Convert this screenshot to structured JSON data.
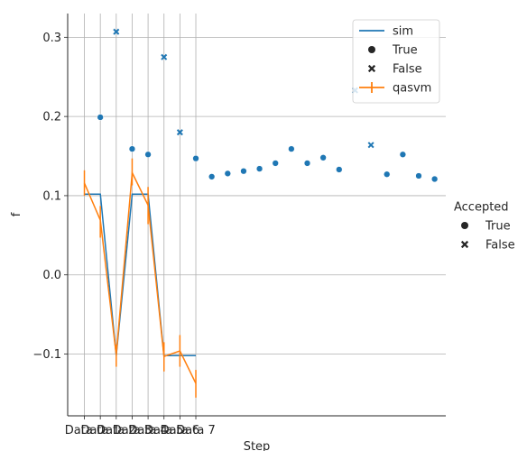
{
  "chart_data": {
    "type": "scatter",
    "title": "",
    "xlabel": "Step",
    "ylabel": "f",
    "ylim": [
      -0.178,
      0.33
    ],
    "xlim": [
      -1.05,
      22.7
    ],
    "grid": true,
    "y_ticks": [
      -0.1,
      0.0,
      0.1,
      0.2,
      0.3
    ],
    "y_tick_labels": [
      "−0.1",
      "0.0",
      "0.1",
      "0.2",
      "0.3"
    ],
    "x_ticks": [
      0,
      1,
      2,
      3,
      4,
      5,
      6,
      7
    ],
    "x_tick_labels": [
      "Data 0",
      "Data 1",
      "Data 2",
      "Data 3",
      "Data 4",
      "Data 5",
      "Data 6",
      "Data 7"
    ],
    "colors": {
      "scatter": "#1f77b4",
      "sim": "#1f77b4",
      "qasvm": "#ff7f0e",
      "grid": "#b0b0b0"
    },
    "legend": {
      "placement": "top-right",
      "entries": [
        {
          "label": "sim",
          "kind": "line",
          "color": "#1f77b4"
        },
        {
          "label": "True",
          "kind": "circle",
          "color": "#262626"
        },
        {
          "label": "False",
          "kind": "x",
          "color": "#262626"
        },
        {
          "label": "qasvm",
          "kind": "errline",
          "color": "#ff7f0e"
        }
      ]
    },
    "side_legend": {
      "title": "Accepted",
      "entries": [
        {
          "label": "True",
          "kind": "circle"
        },
        {
          "label": "False",
          "kind": "x"
        }
      ]
    },
    "scatter": [
      {
        "x": 1,
        "y": 0.199,
        "accepted": true
      },
      {
        "x": 2,
        "y": 0.307,
        "accepted": false
      },
      {
        "x": 3,
        "y": 0.159,
        "accepted": true
      },
      {
        "x": 4,
        "y": 0.152,
        "accepted": true
      },
      {
        "x": 5,
        "y": 0.275,
        "accepted": false
      },
      {
        "x": 6,
        "y": 0.18,
        "accepted": false
      },
      {
        "x": 7,
        "y": 0.147,
        "accepted": true
      },
      {
        "x": 8,
        "y": 0.124,
        "accepted": true
      },
      {
        "x": 9,
        "y": 0.128,
        "accepted": true
      },
      {
        "x": 10,
        "y": 0.131,
        "accepted": true
      },
      {
        "x": 11,
        "y": 0.134,
        "accepted": true
      },
      {
        "x": 12,
        "y": 0.141,
        "accepted": true
      },
      {
        "x": 13,
        "y": 0.159,
        "accepted": true
      },
      {
        "x": 14,
        "y": 0.141,
        "accepted": true
      },
      {
        "x": 15,
        "y": 0.148,
        "accepted": true
      },
      {
        "x": 16,
        "y": 0.133,
        "accepted": true
      },
      {
        "x": 17,
        "y": 0.233,
        "accepted": false
      },
      {
        "x": 18,
        "y": 0.164,
        "accepted": false
      },
      {
        "x": 19,
        "y": 0.127,
        "accepted": true
      },
      {
        "x": 20,
        "y": 0.152,
        "accepted": true
      },
      {
        "x": 21,
        "y": 0.125,
        "accepted": true
      },
      {
        "x": 22,
        "y": 0.121,
        "accepted": true
      }
    ],
    "series": [
      {
        "name": "sim",
        "x": [
          0,
          1,
          2,
          3,
          4,
          5,
          6,
          7
        ],
        "y": [
          0.102,
          0.102,
          -0.102,
          0.102,
          0.102,
          -0.102,
          -0.102,
          -0.102
        ]
      },
      {
        "name": "qasvm",
        "x": [
          0,
          1,
          2,
          3,
          4,
          5,
          6,
          7
        ],
        "y": [
          0.116,
          0.069,
          -0.101,
          0.129,
          0.088,
          -0.103,
          -0.096,
          -0.137
        ],
        "err_low": [
          0.1,
          0.047,
          -0.116,
          0.113,
          0.064,
          -0.122,
          -0.116,
          -0.155
        ],
        "err_high": [
          0.132,
          0.087,
          -0.088,
          0.147,
          0.111,
          -0.085,
          -0.076,
          -0.12
        ]
      }
    ]
  }
}
